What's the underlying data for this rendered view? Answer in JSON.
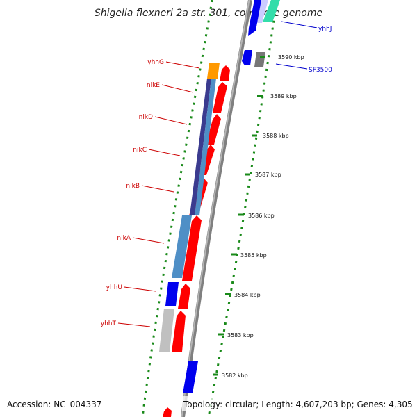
{
  "header": {
    "title": "Shigella flexneri 2a str. 301, complete genome"
  },
  "footer": {
    "accession": "Accession: NC_004337",
    "topology": "Topology: circular; Length: 4,607,203 bp; Genes: 4,305"
  },
  "scale_ticks": [
    "3590 kbp",
    "3589 kbp",
    "3588 kbp",
    "3587 kbp",
    "3586 kbp",
    "3585 kbp",
    "3584 kbp",
    "3583 kbp",
    "3582 kbp"
  ],
  "genes_left": [
    "yhhG",
    "nikE",
    "nikD",
    "nikC",
    "nikB",
    "nikA",
    "yhhU",
    "yhhT"
  ],
  "genes_right": [
    "yhhJ",
    "SF3500"
  ],
  "colors": {
    "forward_cds": "#ff0000",
    "reverse_cds": "#0000ee",
    "orange_feature": "#ff9900",
    "gray_feature": "#777777",
    "backbone": "#888888",
    "dotted_ring": "#1a8a1a",
    "operon_dark": "#3b3b8f",
    "operon_light": "#4f8fc6",
    "teal": "#33ddaa"
  }
}
